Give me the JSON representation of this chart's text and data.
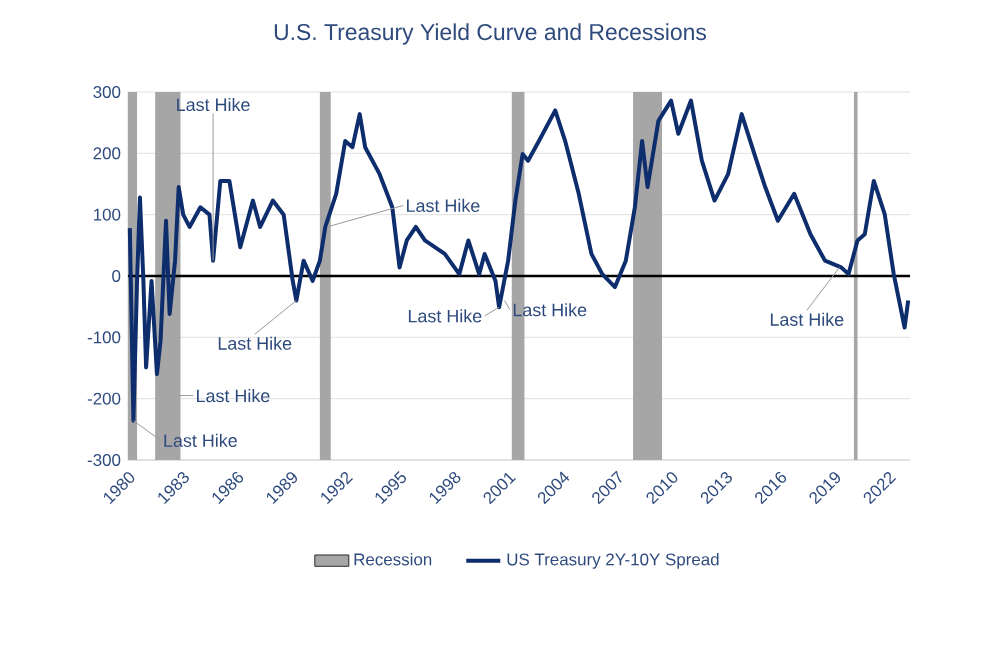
{
  "chart_data": {
    "type": "line",
    "title": "U.S. Treasury Yield Curve and Recessions",
    "xlim": [
      1980,
      2023.2
    ],
    "xticks": [
      1980,
      1983,
      1986,
      1989,
      1992,
      1995,
      1998,
      2001,
      2004,
      2007,
      2010,
      2013,
      2016,
      2019,
      2022
    ],
    "ylim": [
      -300,
      300
    ],
    "yticks": [
      -300,
      -200,
      -100,
      0,
      100,
      200,
      300
    ],
    "grid": "y",
    "legend": "bottom",
    "line_style": "solid",
    "marker": "none",
    "series": [
      {
        "name": "US Treasury 2Y-10Y Spread",
        "color": "#0d2d6c",
        "x": [
          1980.1,
          1980.3,
          1980.5,
          1980.66,
          1980.85,
          1981.0,
          1981.3,
          1981.6,
          1981.8,
          1982.1,
          1982.3,
          1982.6,
          1982.8,
          1983.05,
          1983.4,
          1984.0,
          1984.5,
          1984.7,
          1985.1,
          1985.6,
          1986.2,
          1986.9,
          1987.3,
          1988.0,
          1988.6,
          1989.1,
          1989.3,
          1989.7,
          1990.2,
          1990.6,
          1990.9,
          1991.5,
          1992.0,
          1992.4,
          1992.8,
          1993.1,
          1993.9,
          1994.6,
          1995.0,
          1995.4,
          1995.9,
          1996.4,
          1997.5,
          1998.3,
          1998.8,
          1999.4,
          1999.7,
          2000.3,
          2000.5,
          2001.0,
          2001.4,
          2001.8,
          2002.1,
          2002.7,
          2003.6,
          2004.15,
          2004.9,
          2005.6,
          2006.2,
          2006.9,
          2007.5,
          2008.0,
          2008.4,
          2008.7,
          2009.3,
          2010.0,
          2010.4,
          2011.1,
          2011.7,
          2012.4,
          2013.15,
          2013.9,
          2014.6,
          2015.2,
          2015.9,
          2016.8,
          2017.7,
          2018.5,
          2019.4,
          2019.8,
          2020.3,
          2020.7,
          2021.2,
          2021.8,
          2022.3,
          2022.9,
          2023.1
        ],
        "values": [
          78,
          -236,
          -8,
          128,
          -8,
          -149,
          -8,
          -160,
          -105,
          90,
          -62,
          25,
          145,
          100,
          80,
          112,
          100,
          25,
          155,
          155,
          47,
          123,
          80,
          123,
          100,
          -8,
          -40,
          25,
          -8,
          25,
          80,
          134,
          220,
          210,
          264,
          210,
          166,
          112,
          14,
          58,
          80,
          58,
          36,
          3,
          58,
          3,
          36,
          -8,
          -51,
          25,
          123,
          199,
          188,
          220,
          270,
          220,
          134,
          36,
          3,
          -18,
          25,
          112,
          220,
          145,
          253,
          286,
          232,
          286,
          188,
          123,
          166,
          264,
          199,
          145,
          90,
          134,
          68,
          25,
          14,
          3,
          58,
          68,
          155,
          101,
          3,
          -84,
          -40
        ]
      }
    ],
    "ref_lines": [
      {
        "axis": "y",
        "value": 0,
        "color": "#000000"
      }
    ],
    "bands": [
      {
        "axis": "x",
        "from": 1980.0,
        "to": 1980.5,
        "label": "Recession",
        "color": "#a6a6a6"
      },
      {
        "axis": "x",
        "from": 1981.5,
        "to": 1982.9,
        "color": "#a6a6a6"
      },
      {
        "axis": "x",
        "from": 1990.6,
        "to": 1991.2,
        "color": "#a6a6a6"
      },
      {
        "axis": "x",
        "from": 2001.2,
        "to": 2001.9,
        "color": "#a6a6a6"
      },
      {
        "axis": "x",
        "from": 2007.9,
        "to": 2009.5,
        "color": "#a6a6a6"
      },
      {
        "axis": "x",
        "from": 2020.1,
        "to": 2020.3,
        "color": "#a6a6a6"
      }
    ],
    "annotations": [
      {
        "text": "Last Hike",
        "x": 1980.3,
        "y": -236
      },
      {
        "text": "Last Hike",
        "x": 1982.8,
        "y": -195
      },
      {
        "text": "Last Hike",
        "x": 1984.7,
        "y": 25
      },
      {
        "text": "Last Hike",
        "x": 1989.3,
        "y": -40
      },
      {
        "text": "Last Hike",
        "x": 1991.0,
        "y": 80
      },
      {
        "text": "Last Hike",
        "x": 2000.5,
        "y": -51
      },
      {
        "text": "Last Hike",
        "x": 2000.8,
        "y": -40
      },
      {
        "text": "Last Hike",
        "x": 2019.3,
        "y": 14
      }
    ]
  }
}
